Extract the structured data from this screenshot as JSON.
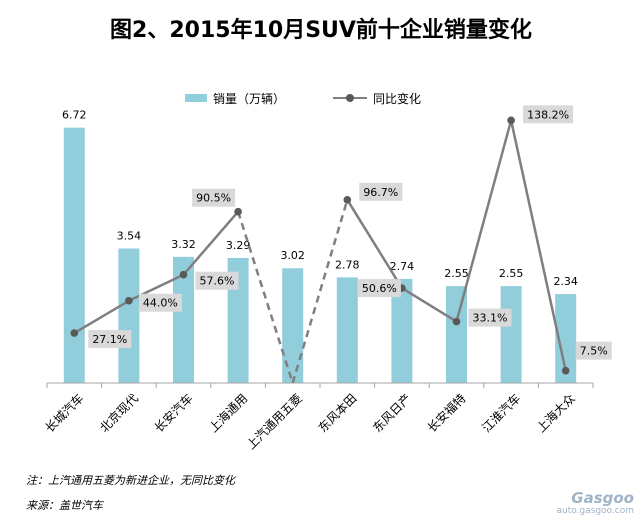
{
  "title": "图2、2015年10月SUV前十企业销量变化",
  "legend": {
    "bar_label": "销量（万辆）",
    "line_label": "同比变化"
  },
  "note": "注：上汽通用五菱为新进企业，无同比变化",
  "source": "来源：盖世汽车",
  "watermark": {
    "brand": "Gasgoo",
    "url": "auto.gasgoo.com"
  },
  "colors": {
    "bar": "#92CDDC",
    "line": "#7F7F7F",
    "marker": "#595959",
    "label_bg": "#D9D9D9"
  },
  "chart_data": {
    "type": "bar",
    "categories": [
      "长城汽车",
      "北京现代",
      "长安汽车",
      "上海通用",
      "上汽通用五菱",
      "东风本田",
      "东风日产",
      "长安福特",
      "江淮汽车",
      "上海大众"
    ],
    "series": [
      {
        "name": "销量（万辆）",
        "type": "bar",
        "values": [
          6.72,
          3.54,
          3.32,
          3.29,
          3.02,
          2.78,
          2.74,
          2.55,
          2.55,
          2.34
        ],
        "labels": [
          "6.72",
          "3.54",
          "3.32",
          "3.29",
          "3.02",
          "2.78",
          "2.74",
          "2.55",
          "2.55",
          "2.34"
        ]
      },
      {
        "name": "同比变化",
        "type": "line",
        "values": [
          27.1,
          44.0,
          57.6,
          90.5,
          null,
          96.7,
          50.6,
          33.1,
          138.2,
          7.5
        ],
        "labels": [
          "27.1%",
          "44.0%",
          "57.6%",
          "90.5%",
          "",
          "96.7%",
          "50.6%",
          "33.1%",
          "138.2%",
          "7.5%"
        ]
      }
    ],
    "dashed_segments_around": "上汽通用五菱",
    "legend_position": "top",
    "grid": false
  }
}
